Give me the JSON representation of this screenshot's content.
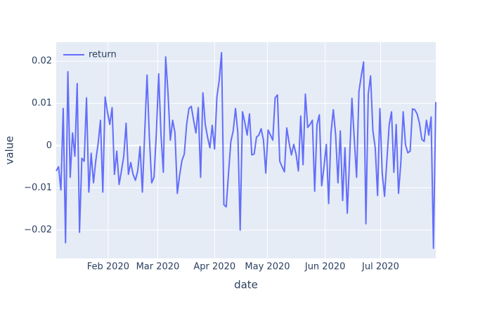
{
  "chart_data": {
    "type": "line",
    "x_label": "date",
    "y_label": "value",
    "legend": "top-left",
    "grid": true,
    "xlim": [
      0,
      163
    ],
    "xticks": [
      {
        "value": 22.3,
        "label": "Feb 2020"
      },
      {
        "value": 43.6,
        "label": "Mar 2020"
      },
      {
        "value": 68,
        "label": "Apr 2020"
      },
      {
        "value": 90.7,
        "label": "May 2020"
      },
      {
        "value": 115.5,
        "label": "Jun 2020"
      },
      {
        "value": 139.3,
        "label": "Jul 2020"
      }
    ],
    "ylim": [
      -0.0267,
      0.0245
    ],
    "yticks": [
      {
        "value": -0.02,
        "label": "−0.02"
      },
      {
        "value": -0.01,
        "label": "−0.01"
      },
      0,
      0.01,
      0.02
    ],
    "series": [
      {
        "name": "return",
        "color": "#636efa",
        "values": [
          -0.006,
          -0.005,
          -0.0105,
          0.0088,
          -0.023,
          0.0175,
          -0.0075,
          0.003,
          -0.0025,
          0.0147,
          -0.0205,
          -0.003,
          -0.0037,
          0.0113,
          -0.011,
          -0.0018,
          -0.0088,
          -0.0035,
          0.0005,
          0.006,
          -0.011,
          0.0115,
          0.008,
          0.005,
          0.009,
          -0.0068,
          -0.0013,
          -0.0092,
          -0.006,
          -0.0025,
          0.0053,
          -0.0068,
          -0.004,
          -0.0068,
          -0.0082,
          -0.006,
          -0.0002,
          -0.011,
          0.003,
          0.0167,
          0.002,
          -0.0088,
          -0.0075,
          0.003,
          0.017,
          0.0025,
          -0.0063,
          0.021,
          0.0125,
          0.0013,
          0.006,
          0.003,
          -0.0113,
          -0.007,
          -0.0035,
          -0.002,
          0.005,
          0.0088,
          0.0093,
          0.006,
          0.003,
          0.009,
          -0.0075,
          0.0125,
          0.005,
          0.002,
          -0.0005,
          0.0048,
          -0.0008,
          0.0115,
          0.0155,
          0.022,
          -0.014,
          -0.0145,
          -0.0065,
          0.001,
          0.0035,
          0.0088,
          0.003,
          -0.02,
          0.008,
          0.0055,
          0.0025,
          0.0075,
          -0.0022,
          -0.002,
          0.002,
          0.0025,
          0.004,
          0.0013,
          -0.0065,
          0.0037,
          0.0025,
          0.0013,
          0.0113,
          0.012,
          -0.0037,
          -0.005,
          -0.0062,
          0.0042,
          0.0007,
          -0.0022,
          0.0003,
          -0.002,
          -0.006,
          0.007,
          -0.0045,
          0.0122,
          0.0043,
          0.005,
          0.006,
          -0.0108,
          0.005,
          0.0073,
          -0.0095,
          -0.005,
          0.0003,
          -0.0137,
          0.003,
          0.0085,
          0.0025,
          -0.0088,
          0.0035,
          -0.013,
          -0.0005,
          -0.016,
          -0.003,
          0.0112,
          0.0015,
          -0.0075,
          0.0128,
          0.0165,
          0.0198,
          -0.0185,
          0.0122,
          0.0165,
          0.0035,
          -0.0005,
          -0.0118,
          0.0088,
          -0.0065,
          -0.012,
          -0.0035,
          0.005,
          0.008,
          -0.0063,
          0.005,
          -0.0113,
          -0.004,
          0.008,
          0.0002,
          -0.0017,
          -0.0013,
          0.0087,
          0.0085,
          0.0075,
          0.0053,
          0.0015,
          0.001,
          0.006,
          0.0025,
          0.0068,
          -0.0243,
          0.0103
        ]
      }
    ]
  }
}
